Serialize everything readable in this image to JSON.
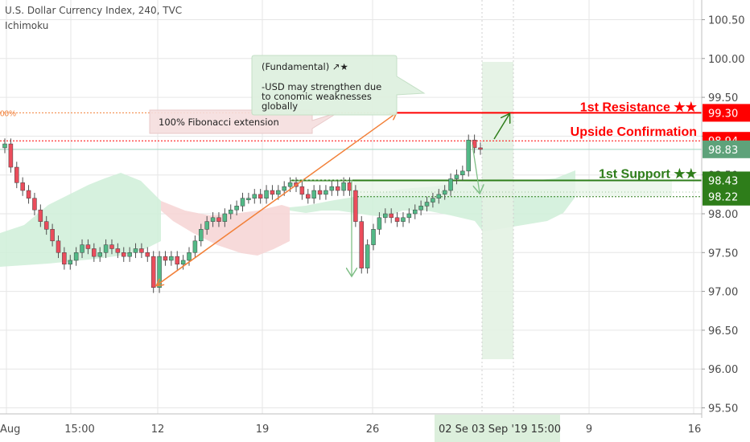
{
  "header": {
    "title": "U.S. Dollar Currency Index, 240, TVC",
    "indicator": "Ichimoku"
  },
  "colors": {
    "bull": "#53b987",
    "bear": "#eb4d5c",
    "resistance": "#ff0000",
    "support": "#2e7d1a",
    "fib": "#f2813a",
    "cloud_green": "#cfeed8",
    "cloud_red": "#f6d4d4",
    "projection": "#e3f2e3",
    "axis_text": "#4a4a4a",
    "grid": "#e6e6e6"
  },
  "chart_data": {
    "type": "candlestick",
    "title": "U.S. Dollar Currency Index, 240, TVC",
    "indicator": "Ichimoku",
    "ylim": [
      95.4,
      100.85
    ],
    "y_ticks": [
      "100.50",
      "100.00",
      "99.50",
      "99.00",
      "98.50",
      "98.00",
      "97.50",
      "97.00",
      "96.50",
      "96.00",
      "95.50"
    ],
    "x_ticks": [
      "Aug",
      "15:00",
      "12",
      "19",
      "26",
      "9",
      "16"
    ],
    "x_highlight_label": "02 Se  03 Sep '19   15:00",
    "price_labels": [
      {
        "value": "99.30",
        "color": "#ff0000"
      },
      {
        "value": "98.94",
        "color": "#ff0000"
      },
      {
        "value": "98.83",
        "color": "#5ea27a"
      },
      {
        "value": "98.43",
        "color": "#2e7d1a"
      },
      {
        "value": "98.22",
        "color": "#2e7d1a"
      }
    ],
    "levels": [
      {
        "name": "1st Resistance ★★",
        "value": 99.3
      },
      {
        "name": "Upside Confirmation",
        "value": 98.94
      },
      {
        "name": "1st Support ★★",
        "value": 98.43
      }
    ],
    "fib_label": "00%",
    "annotations": [
      {
        "text": "100% Fibonacci extension"
      },
      {
        "lines": [
          "(Fundamental) ↗★",
          "",
          "-USD may strengthen due",
          "to conomic weaknesses",
          "globally"
        ]
      }
    ],
    "series_close": [
      98.9,
      98.6,
      98.4,
      98.3,
      98.2,
      98.05,
      97.9,
      97.8,
      97.65,
      97.5,
      97.35,
      97.4,
      97.5,
      97.6,
      97.55,
      97.45,
      97.5,
      97.6,
      97.55,
      97.5,
      97.45,
      97.5,
      97.55,
      97.5,
      97.45,
      97.05,
      97.45,
      97.4,
      97.45,
      97.35,
      97.4,
      97.5,
      97.65,
      97.8,
      97.9,
      97.95,
      97.9,
      98.0,
      98.05,
      98.1,
      98.2,
      98.2,
      98.25,
      98.2,
      98.3,
      98.25,
      98.3,
      98.35,
      98.4,
      98.35,
      98.25,
      98.2,
      98.3,
      98.25,
      98.3,
      98.35,
      98.3,
      98.4,
      98.3,
      97.9,
      97.3,
      97.6,
      97.8,
      97.95,
      98.0,
      97.95,
      97.9,
      97.95,
      98.0,
      98.05,
      98.1,
      98.15,
      98.2,
      98.25,
      98.3,
      98.45,
      98.5,
      98.55,
      98.95,
      98.85,
      98.83
    ]
  }
}
